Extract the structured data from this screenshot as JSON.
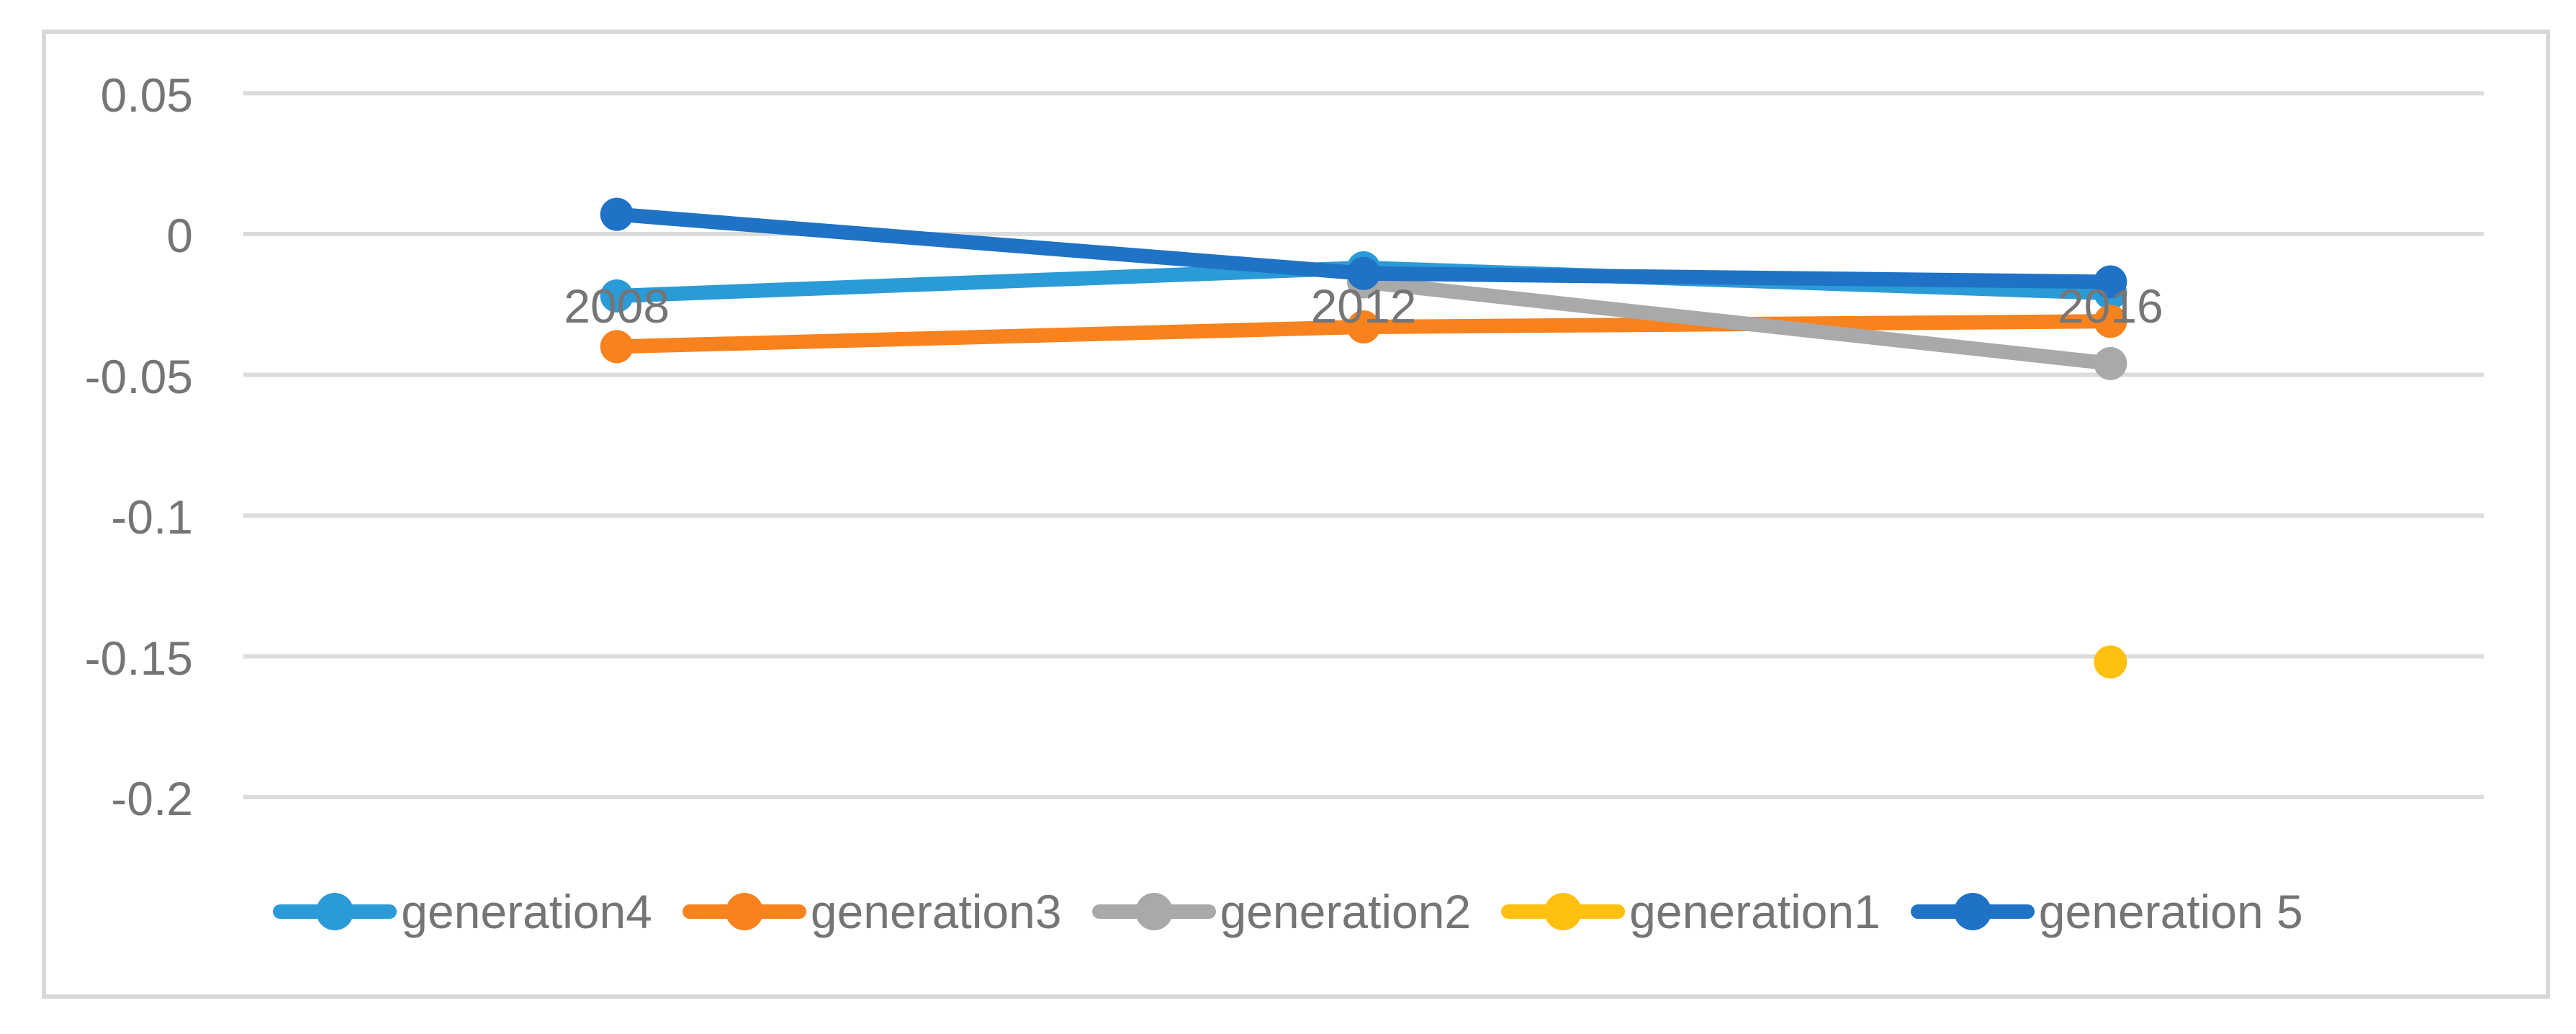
{
  "chart_data": {
    "type": "line",
    "title": "",
    "xlabel": "",
    "ylabel": "",
    "categories": [
      "2008",
      "2012",
      "2016"
    ],
    "series": [
      {
        "name": "generation4",
        "color": "#2b9bd7",
        "values": [
          -0.022,
          -0.012,
          -0.021
        ]
      },
      {
        "name": "generation3",
        "color": "#f8821e",
        "values": [
          -0.04,
          -0.033,
          -0.031
        ]
      },
      {
        "name": "generation2",
        "color": "#a9a9a9",
        "values": [
          null,
          -0.017,
          -0.046
        ]
      },
      {
        "name": "generation1",
        "color": "#ffc010",
        "values": [
          null,
          null,
          -0.152
        ]
      },
      {
        "name": "generation 5",
        "color": "#1f72c6",
        "values": [
          0.007,
          -0.014,
          -0.017
        ]
      }
    ],
    "y_axis": {
      "tick_labels": [
        "0.05",
        "0",
        "-0.05",
        "-0.1",
        "-0.15",
        "-0.2"
      ],
      "tick_values": [
        0.05,
        0,
        -0.05,
        -0.1,
        -0.15,
        -0.2
      ],
      "max": 0.05,
      "min": -0.2
    },
    "grid": true,
    "legend_position": "bottom",
    "marker": "circle"
  },
  "palette": {
    "gridline": "#dcdcdc",
    "chart_border": "#d8d8d8",
    "axis_text": "#757575",
    "background": "#ffffff"
  }
}
